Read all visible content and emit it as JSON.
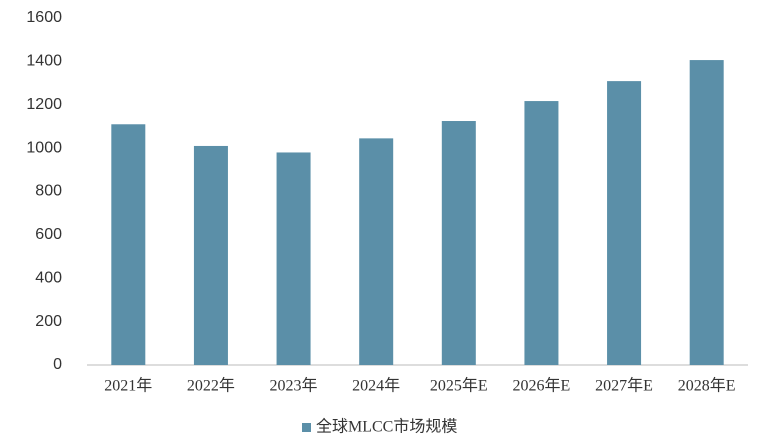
{
  "chart_data": {
    "type": "bar",
    "categories": [
      "2021年",
      "2022年",
      "2023年",
      "2024年",
      "2025年E",
      "2026年E",
      "2027年E",
      "2028年E"
    ],
    "series": [
      {
        "name": "全球MLCC市场规模",
        "color": "#5b8fa8",
        "values": [
          1110,
          1010,
          980,
          1045,
          1125,
          1217,
          1309,
          1406
        ]
      }
    ],
    "ylim": [
      0,
      1600
    ],
    "yticks": [
      0,
      200,
      400,
      600,
      800,
      1000,
      1200,
      1400,
      1600
    ],
    "grid": false
  }
}
